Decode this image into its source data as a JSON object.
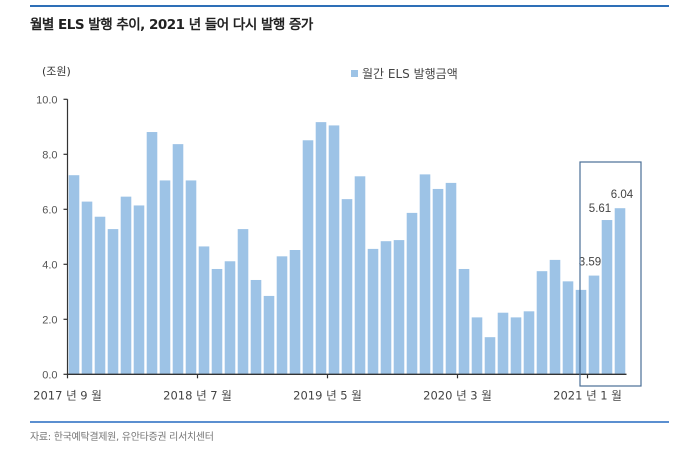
{
  "header": {
    "title": "월별 ELS 발행 추이, 2021 년 들어 다시 발행 증가"
  },
  "footer": {
    "source": "자료: 한국예탁결제원, 유안타증권 리서치센터"
  },
  "colors": {
    "bar": "#9dc3e6",
    "rule": "#2e6fb7",
    "highlight_box": "#4a6f96",
    "axis": "#333333"
  },
  "chart_data": {
    "type": "bar",
    "title": "월별 ELS 발행 추이, 2021 년 들어 다시 발행 증가",
    "xlabel": "",
    "ylabel": "(조원)",
    "ylim": [
      0,
      10
    ],
    "yticks": [
      "0.0",
      "2.0",
      "4.0",
      "6.0",
      "8.0",
      "10.0"
    ],
    "grid": false,
    "legend": {
      "position": "top-right",
      "entries": [
        "월간 ELS 발행금액"
      ]
    },
    "x_tick_labels": [
      {
        "index": 0,
        "label": "2017 년 9 월"
      },
      {
        "index": 10,
        "label": "2018 년 7 월"
      },
      {
        "index": 20,
        "label": "2019 년 5 월"
      },
      {
        "index": 30,
        "label": "2020 년 3 월"
      },
      {
        "index": 40,
        "label": "2021 년 1 월"
      }
    ],
    "categories": [
      "2017-09",
      "2017-10",
      "2017-11",
      "2017-12",
      "2018-01",
      "2018-02",
      "2018-03",
      "2018-04",
      "2018-05",
      "2018-06",
      "2018-07",
      "2018-08",
      "2018-09",
      "2018-10",
      "2018-11",
      "2018-12",
      "2019-01",
      "2019-02",
      "2019-03",
      "2019-04",
      "2019-05",
      "2019-06",
      "2019-07",
      "2019-08",
      "2019-09",
      "2019-10",
      "2019-11",
      "2019-12",
      "2020-01",
      "2020-02",
      "2020-03",
      "2020-04",
      "2020-05",
      "2020-06",
      "2020-07",
      "2020-08",
      "2020-09",
      "2020-10",
      "2020-11",
      "2020-12",
      "2021-01",
      "2021-02",
      "2021-03"
    ],
    "series": [
      {
        "name": "월간 ELS 발행금액",
        "values": [
          7.24,
          6.28,
          5.73,
          5.28,
          6.46,
          6.14,
          8.81,
          7.05,
          8.37,
          7.05,
          4.65,
          3.83,
          4.11,
          5.28,
          3.43,
          2.85,
          4.29,
          4.52,
          8.51,
          9.17,
          9.05,
          6.37,
          7.2,
          4.56,
          4.84,
          4.88,
          5.87,
          7.27,
          6.74,
          6.96,
          3.83,
          2.07,
          1.35,
          2.24,
          2.07,
          2.29,
          3.75,
          4.16,
          3.38,
          3.07,
          3.59,
          5.61,
          6.04
        ]
      }
    ],
    "annotations": [
      {
        "index": 40,
        "text": "3.59"
      },
      {
        "index": 41,
        "text": "5.61"
      },
      {
        "index": 42,
        "text": "6.04"
      }
    ],
    "highlight_box": {
      "from_index": 40,
      "to_index": 42
    }
  },
  "labels": {
    "unit": "(조원)",
    "legend": "월간 ELS 발행금액"
  }
}
